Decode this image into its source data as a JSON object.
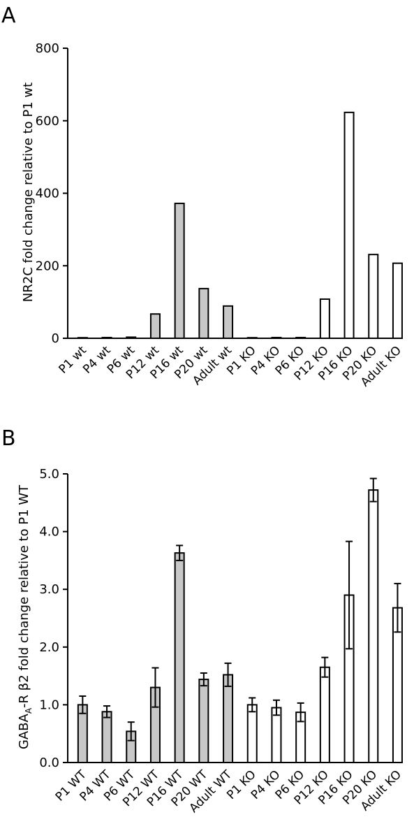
{
  "chart_data": [
    {
      "panel_label": "A",
      "type": "bar",
      "ylabel": "NR2C fold change relative to P1 wt",
      "ylim": [
        0,
        800
      ],
      "yticks": [
        "0",
        "200",
        "400",
        "600",
        "800"
      ],
      "categories": [
        "P1 wt",
        "P4 wt",
        "P6 wt",
        "P12 wt",
        "P16 wt",
        "P20 wt",
        "Adult wt",
        "P1 KO",
        "P4 KO",
        "P6 KO",
        "P12 KO",
        "P16 KO",
        "P20 KO",
        "Adult KO"
      ],
      "values": [
        1,
        2,
        3,
        67,
        372,
        137,
        89,
        1,
        2,
        2,
        108,
        623,
        231,
        207
      ],
      "fills": [
        "gray",
        "gray",
        "gray",
        "gray",
        "gray",
        "gray",
        "gray",
        "white",
        "white",
        "white",
        "white",
        "white",
        "white",
        "white"
      ],
      "colors": {
        "gray": "#c8c8c8",
        "white": "#ffffff",
        "stroke": "#000000"
      },
      "error_bars": false,
      "grid": false
    },
    {
      "panel_label": "B",
      "type": "bar",
      "ylabel": "GABA",
      "ylabel_sub": "A",
      "ylabel_rest": "-R β2 fold change relative to P1 WT",
      "ylim": [
        0,
        5
      ],
      "yticks": [
        "0.0",
        "1.0",
        "2.0",
        "3.0",
        "4.0",
        "5.0"
      ],
      "categories": [
        "P1 WT",
        "P4 WT",
        "P6 WT",
        "P12 WT",
        "P16 WT",
        "P20 WT",
        "Adult WT",
        "P1 KO",
        "P4 KO",
        "P6 KO",
        "P12 KO",
        "P16 KO",
        "P20 KO",
        "Adult KO"
      ],
      "values": [
        1.0,
        0.88,
        0.54,
        1.3,
        3.63,
        1.44,
        1.52,
        1.0,
        0.95,
        0.87,
        1.65,
        2.9,
        4.72,
        2.68
      ],
      "errors": [
        0.15,
        0.1,
        0.16,
        0.34,
        0.13,
        0.11,
        0.2,
        0.12,
        0.13,
        0.16,
        0.17,
        0.93,
        0.2,
        0.42
      ],
      "fills": [
        "gray",
        "gray",
        "gray",
        "gray",
        "gray",
        "gray",
        "gray",
        "white",
        "white",
        "white",
        "white",
        "white",
        "white",
        "white"
      ],
      "colors": {
        "gray": "#c8c8c8",
        "white": "#ffffff",
        "stroke": "#000000"
      },
      "error_bars": true,
      "grid": false
    }
  ]
}
